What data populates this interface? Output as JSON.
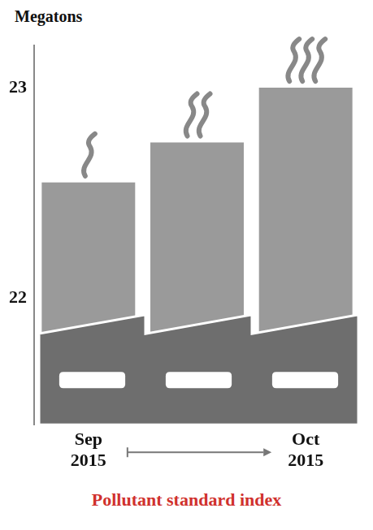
{
  "chart_data": {
    "type": "bar",
    "title": "Pollutant standard index",
    "y_label": "Megatons",
    "categories": [
      "Sep 2015",
      null,
      "Oct 2015"
    ],
    "values": [
      22.55,
      22.74,
      23.0
    ],
    "color": "#9a9a9a",
    "ylim": [
      21.4,
      23.2
    ],
    "yticks": [
      22,
      23
    ],
    "grid": false
  }
}
